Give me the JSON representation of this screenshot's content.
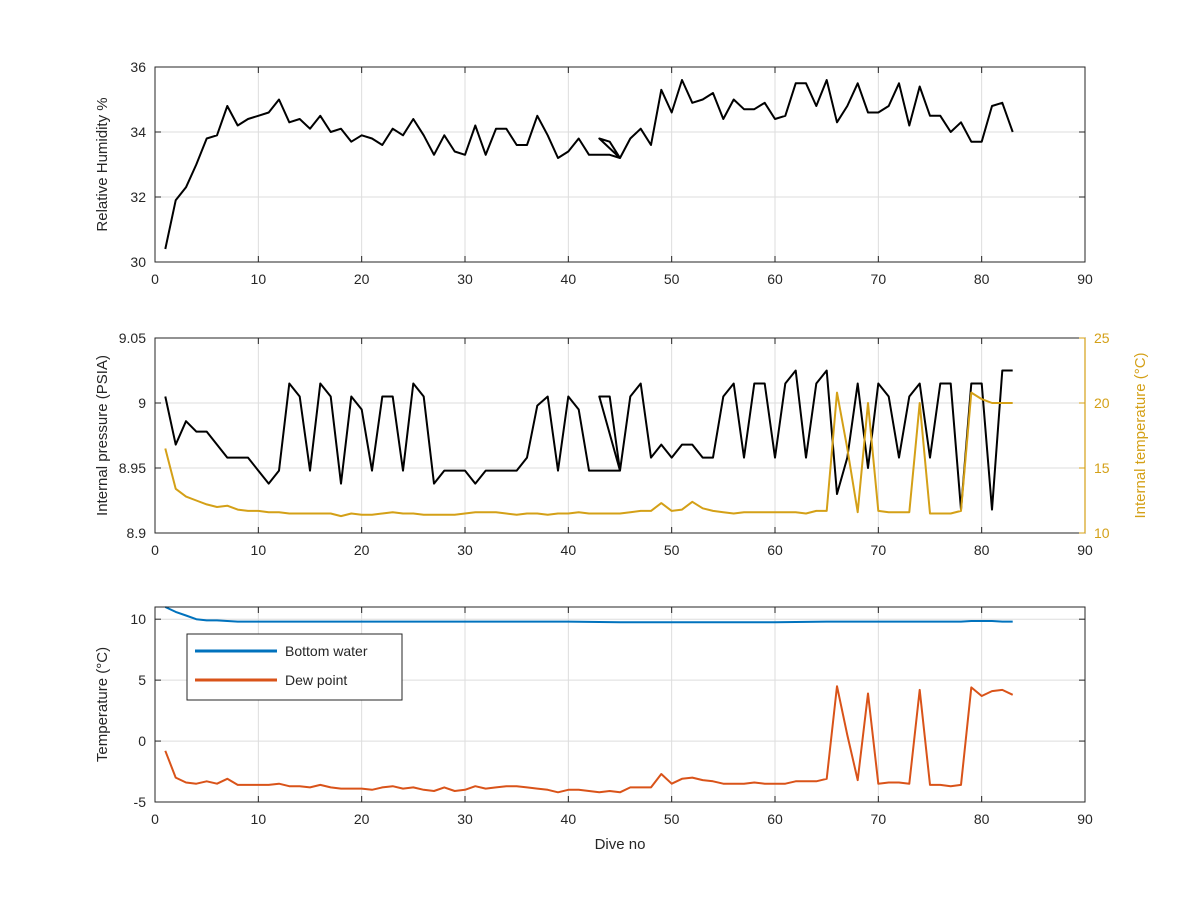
{
  "colors": {
    "humidity": "#000000",
    "pressure": "#000000",
    "internal_temperature": "#D4A017",
    "bottom_water": "#0072BD",
    "dew_point": "#D95319",
    "grid": "#dddddd",
    "axis": "#262626"
  },
  "chart_data": [
    {
      "type": "line",
      "xlabel": "",
      "ylabel": "Relative Humidity %",
      "xlim": [
        0,
        90
      ],
      "ylim": [
        30,
        36
      ],
      "xticks": [
        0,
        10,
        20,
        30,
        40,
        50,
        60,
        70,
        80,
        90
      ],
      "yticks": [
        30,
        32,
        34,
        36
      ],
      "grid": true,
      "series": [
        {
          "name": "",
          "color_key": "humidity",
          "axis": "left",
          "x": [
            1,
            2,
            3,
            4,
            5,
            6,
            7,
            8,
            9,
            10,
            11,
            12,
            13,
            14,
            15,
            16,
            17,
            18,
            19,
            20,
            21,
            22,
            23,
            24,
            25,
            26,
            27,
            28,
            29,
            30,
            31,
            32,
            33,
            34,
            35,
            36,
            37,
            38,
            39,
            40,
            41,
            42,
            43,
            44,
            45,
            43,
            44,
            45,
            46,
            47,
            48,
            49,
            50,
            51,
            52,
            53,
            54,
            55,
            56,
            57,
            58,
            59,
            60,
            61,
            62,
            63,
            64,
            65,
            66,
            67,
            68,
            69,
            70,
            71,
            72,
            73,
            74,
            75,
            76,
            77,
            78,
            79,
            80,
            81,
            82,
            83
          ],
          "y": [
            30.4,
            31.9,
            32.3,
            33.0,
            33.8,
            33.9,
            34.8,
            34.2,
            34.4,
            34.5,
            34.6,
            35.0,
            34.3,
            34.4,
            34.1,
            34.5,
            34.0,
            34.1,
            33.7,
            33.9,
            33.8,
            33.6,
            34.1,
            33.9,
            34.4,
            33.9,
            33.3,
            33.9,
            33.4,
            33.3,
            34.2,
            33.3,
            34.1,
            34.1,
            33.6,
            33.6,
            34.5,
            33.9,
            33.2,
            33.4,
            33.8,
            33.3,
            33.3,
            33.3,
            33.2,
            33.8,
            33.7,
            33.2,
            33.8,
            34.1,
            33.6,
            35.3,
            34.6,
            35.6,
            34.9,
            35.0,
            35.2,
            34.4,
            35.0,
            34.7,
            34.7,
            34.9,
            34.4,
            34.5,
            35.5,
            35.5,
            34.8,
            35.6,
            34.3,
            34.8,
            35.5,
            34.6,
            34.6,
            34.8,
            35.5,
            34.2,
            35.4,
            34.5,
            34.5,
            34.0,
            34.3,
            33.7,
            33.7,
            34.8,
            34.9,
            34.0
          ]
        }
      ]
    },
    {
      "type": "line",
      "xlabel": "",
      "ylabel": "Internal pressure (PSIA)",
      "y2label": "Internal temperature (°C)",
      "xlim": [
        0,
        90
      ],
      "ylim": [
        8.9,
        9.05
      ],
      "y2lim": [
        10,
        25
      ],
      "xticks": [
        0,
        10,
        20,
        30,
        40,
        50,
        60,
        70,
        80,
        90
      ],
      "yticks": [
        8.9,
        8.95,
        9.0,
        9.05
      ],
      "ytick_labels": [
        "8.9",
        "8.95",
        "9",
        "9.05"
      ],
      "y2ticks": [
        10,
        15,
        20,
        25
      ],
      "grid": true,
      "series": [
        {
          "name": "",
          "color_key": "pressure",
          "axis": "left",
          "x": [
            1,
            2,
            3,
            4,
            5,
            6,
            7,
            8,
            9,
            10,
            11,
            12,
            13,
            14,
            15,
            16,
            17,
            18,
            19,
            20,
            21,
            22,
            23,
            24,
            25,
            26,
            27,
            28,
            29,
            30,
            31,
            32,
            33,
            34,
            35,
            36,
            37,
            38,
            39,
            40,
            41,
            42,
            43,
            44,
            45,
            43,
            44,
            45,
            46,
            47,
            48,
            49,
            50,
            51,
            52,
            53,
            54,
            55,
            56,
            57,
            58,
            59,
            60,
            61,
            62,
            63,
            64,
            65,
            66,
            67,
            68,
            69,
            70,
            71,
            72,
            73,
            74,
            75,
            76,
            77,
            78,
            79,
            80,
            81,
            82,
            83
          ],
          "y": [
            9.005,
            8.968,
            8.986,
            8.978,
            8.978,
            8.968,
            8.958,
            8.958,
            8.958,
            8.948,
            8.938,
            8.948,
            9.015,
            9.005,
            8.948,
            9.015,
            9.005,
            8.938,
            9.005,
            8.995,
            8.948,
            9.005,
            9.005,
            8.948,
            9.015,
            9.005,
            8.938,
            8.948,
            8.948,
            8.948,
            8.938,
            8.948,
            8.948,
            8.948,
            8.948,
            8.958,
            8.998,
            9.005,
            8.948,
            9.005,
            8.995,
            8.948,
            8.948,
            8.948,
            8.948,
            9.005,
            9.005,
            8.948,
            9.005,
            9.015,
            8.958,
            8.968,
            8.958,
            8.968,
            8.968,
            8.958,
            8.958,
            9.005,
            9.015,
            8.958,
            9.015,
            9.015,
            8.958,
            9.015,
            9.025,
            8.958,
            9.015,
            9.025,
            8.93,
            8.958,
            9.015,
            8.95,
            9.015,
            9.005,
            8.958,
            9.005,
            9.015,
            8.958,
            9.015,
            9.015,
            8.918,
            9.015,
            9.015,
            8.918,
            9.025,
            9.025
          ]
        },
        {
          "name": "",
          "color_key": "internal_temperature",
          "axis": "right",
          "x": [
            1,
            2,
            3,
            4,
            5,
            6,
            7,
            8,
            9,
            10,
            11,
            12,
            13,
            14,
            15,
            16,
            17,
            18,
            19,
            20,
            21,
            22,
            23,
            24,
            25,
            26,
            27,
            28,
            29,
            30,
            31,
            32,
            33,
            34,
            35,
            36,
            37,
            38,
            39,
            40,
            41,
            42,
            43,
            44,
            45,
            46,
            47,
            48,
            49,
            50,
            51,
            52,
            53,
            54,
            55,
            56,
            57,
            58,
            59,
            60,
            61,
            62,
            63,
            64,
            65,
            66,
            67,
            68,
            69,
            70,
            71,
            72,
            73,
            74,
            75,
            76,
            77,
            78,
            79,
            80,
            81,
            82,
            83
          ],
          "y": [
            16.5,
            13.4,
            12.8,
            12.5,
            12.2,
            12.0,
            12.1,
            11.8,
            11.7,
            11.7,
            11.6,
            11.6,
            11.5,
            11.5,
            11.5,
            11.5,
            11.5,
            11.3,
            11.5,
            11.4,
            11.4,
            11.5,
            11.6,
            11.5,
            11.5,
            11.4,
            11.4,
            11.4,
            11.4,
            11.5,
            11.6,
            11.6,
            11.6,
            11.5,
            11.4,
            11.5,
            11.5,
            11.4,
            11.5,
            11.5,
            11.6,
            11.5,
            11.5,
            11.5,
            11.5,
            11.6,
            11.7,
            11.7,
            12.3,
            11.7,
            11.8,
            12.4,
            11.9,
            11.7,
            11.6,
            11.5,
            11.6,
            11.6,
            11.6,
            11.6,
            11.6,
            11.6,
            11.5,
            11.7,
            11.7,
            20.8,
            16.5,
            11.6,
            20.0,
            11.7,
            11.6,
            11.6,
            11.6,
            20.0,
            11.5,
            11.5,
            11.5,
            11.7,
            20.8,
            20.3,
            20.0,
            20.0,
            20.0
          ]
        }
      ]
    },
    {
      "type": "line",
      "xlabel": "Dive no",
      "ylabel": "Temperature (°C)",
      "xlim": [
        0,
        90
      ],
      "ylim": [
        -5,
        11
      ],
      "xticks": [
        0,
        10,
        20,
        30,
        40,
        50,
        60,
        70,
        80,
        90
      ],
      "yticks": [
        -5,
        0,
        5,
        10
      ],
      "grid": true,
      "legend": "top-left",
      "series": [
        {
          "name": "Bottom water",
          "color_key": "bottom_water",
          "axis": "left",
          "x": [
            1,
            2,
            3,
            4,
            5,
            6,
            7,
            8,
            9,
            10,
            15,
            20,
            25,
            30,
            35,
            40,
            45,
            50,
            55,
            60,
            65,
            70,
            75,
            78,
            79,
            80,
            81,
            82,
            83
          ],
          "y": [
            11.0,
            10.6,
            10.3,
            10.0,
            9.9,
            9.9,
            9.85,
            9.8,
            9.8,
            9.8,
            9.8,
            9.8,
            9.8,
            9.8,
            9.8,
            9.8,
            9.75,
            9.75,
            9.75,
            9.75,
            9.8,
            9.8,
            9.8,
            9.8,
            9.85,
            9.85,
            9.85,
            9.8,
            9.8
          ]
        },
        {
          "name": "Dew point",
          "color_key": "dew_point",
          "axis": "left",
          "x": [
            1,
            2,
            3,
            4,
            5,
            6,
            7,
            8,
            9,
            10,
            11,
            12,
            13,
            14,
            15,
            16,
            17,
            18,
            19,
            20,
            21,
            22,
            23,
            24,
            25,
            26,
            27,
            28,
            29,
            30,
            31,
            32,
            33,
            34,
            35,
            36,
            37,
            38,
            39,
            40,
            41,
            42,
            43,
            44,
            45,
            46,
            47,
            48,
            49,
            50,
            51,
            52,
            53,
            54,
            55,
            56,
            57,
            58,
            59,
            60,
            61,
            62,
            63,
            64,
            65,
            66,
            67,
            68,
            69,
            70,
            71,
            72,
            73,
            74,
            75,
            76,
            77,
            78,
            79,
            80,
            81,
            82,
            83
          ],
          "y": [
            -0.8,
            -3.0,
            -3.4,
            -3.5,
            -3.3,
            -3.5,
            -3.1,
            -3.6,
            -3.6,
            -3.6,
            -3.6,
            -3.5,
            -3.7,
            -3.7,
            -3.8,
            -3.6,
            -3.8,
            -3.9,
            -3.9,
            -3.9,
            -4.0,
            -3.8,
            -3.7,
            -3.9,
            -3.8,
            -4.0,
            -4.1,
            -3.8,
            -4.1,
            -4.0,
            -3.7,
            -3.9,
            -3.8,
            -3.7,
            -3.7,
            -3.8,
            -3.9,
            -4.0,
            -4.2,
            -4.0,
            -4.0,
            -4.1,
            -4.2,
            -4.1,
            -4.2,
            -3.8,
            -3.8,
            -3.8,
            -2.7,
            -3.5,
            -3.1,
            -3.0,
            -3.2,
            -3.3,
            -3.5,
            -3.5,
            -3.5,
            -3.4,
            -3.5,
            -3.5,
            -3.5,
            -3.3,
            -3.3,
            -3.3,
            -3.1,
            4.5,
            0.5,
            -3.2,
            3.9,
            -3.5,
            -3.4,
            -3.4,
            -3.5,
            4.2,
            -3.6,
            -3.6,
            -3.7,
            -3.6,
            4.4,
            3.7,
            4.1,
            4.2,
            3.8
          ]
        }
      ]
    }
  ]
}
